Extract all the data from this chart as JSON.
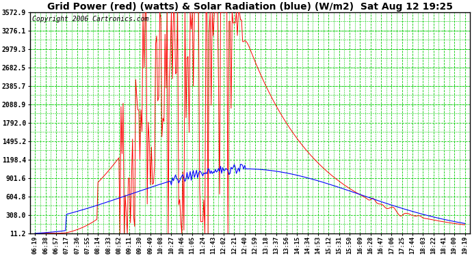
{
  "title": "Grid Power (red) (watts) & Solar Radiation (blue) (W/m2)  Sat Aug 12 19:25",
  "copyright": "Copyright 2006 Cartronics.com",
  "bg_color": "#ffffff",
  "plot_bg_color": "#ffffff",
  "grid_color": "#00cc00",
  "ytick_labels": [
    "11.2",
    "308.0",
    "604.8",
    "901.6",
    "1198.4",
    "1495.2",
    "1792.0",
    "2088.9",
    "2385.7",
    "2682.5",
    "2979.3",
    "3276.1",
    "3572.9"
  ],
  "ytick_values": [
    11.2,
    308.0,
    604.8,
    901.6,
    1198.4,
    1495.2,
    1792.0,
    2088.9,
    2385.7,
    2682.5,
    2979.3,
    3276.1,
    3572.9
  ],
  "ymin": 11.2,
  "ymax": 3572.9,
  "title_fontsize": 10,
  "copyright_fontsize": 7
}
